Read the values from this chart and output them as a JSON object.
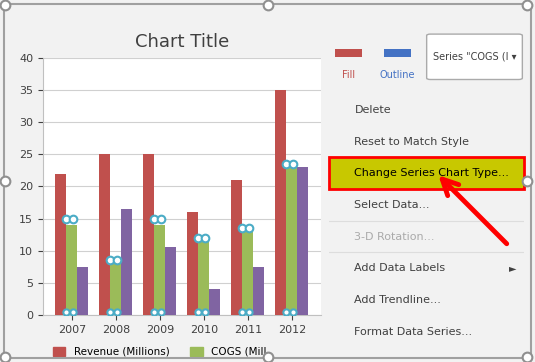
{
  "title": "Chart Title",
  "years": [
    "2007",
    "2008",
    "2009",
    "2010",
    "2011",
    "2012"
  ],
  "revenue": [
    22,
    25,
    25,
    16,
    21,
    35
  ],
  "cogs": [
    14,
    8,
    14,
    12,
    13,
    23
  ],
  "other": [
    7.5,
    16.5,
    10.5,
    4,
    7.5,
    23
  ],
  "revenue_color": "#C0504D",
  "cogs_color": "#9BBB59",
  "other_color": "#8064A2",
  "scatter_color": "#4BACC6",
  "bar_width": 0.25,
  "ylim": [
    0,
    40
  ],
  "yticks": [
    0,
    5,
    10,
    15,
    20,
    25,
    30,
    35,
    40
  ],
  "legend_labels": [
    "Revenue (Millions)",
    "COGS (Mill"
  ],
  "chart_bg": "#FFFFFF",
  "outer_bg": "#F2F2F2",
  "grid_color": "#D0D0D0",
  "scatter_dots": [
    {
      "xi": 0,
      "offsets": [
        -0.13,
        0.03
      ],
      "y": 15
    },
    {
      "xi": 1,
      "offsets": [
        -0.13,
        0.03
      ],
      "y": 8.5
    },
    {
      "xi": 2,
      "offsets": [
        -0.13,
        0.03
      ],
      "y": 15
    },
    {
      "xi": 3,
      "offsets": [
        -0.13,
        0.03
      ],
      "y": 12
    },
    {
      "xi": 4,
      "offsets": [
        -0.13,
        0.03
      ],
      "y": 13.5
    },
    {
      "xi": 5,
      "offsets": [
        -0.13,
        0.03
      ],
      "y": 23.5
    }
  ],
  "menu_items": [
    "Delete",
    "Reset to Match Style",
    "Change Series Chart Type...",
    "Select Data...",
    "3-D Rotation...",
    "Add Data Labels",
    "Add Trendline...",
    "Format Data Series..."
  ],
  "highlighted_item": "Change Series Chart Type...",
  "highlight_color": "#C8C800",
  "highlight_border": "#FF0000",
  "disabled_items": [
    "3-D Rotation..."
  ],
  "submenu_items": [
    "Add Data Labels"
  ],
  "separator_after": [
    "Reset to Match Style",
    "Select Data...",
    "3-D Rotation..."
  ]
}
